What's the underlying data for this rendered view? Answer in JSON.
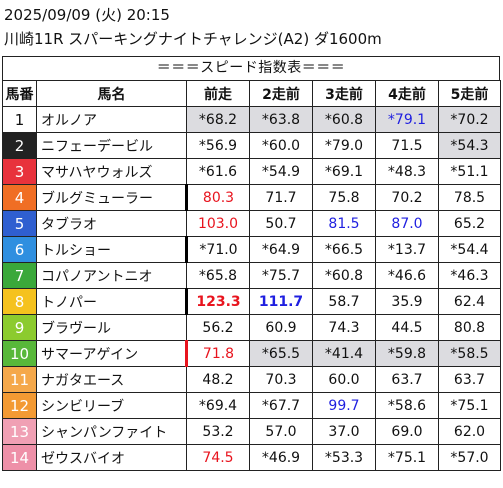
{
  "header": {
    "datetime": "2025/09/09 (火) 20:15",
    "race": "川崎11R スパーキングナイトチャレンジ(A2) ダ1600m"
  },
  "table": {
    "title": "＝＝＝スピード指数表＝＝＝",
    "columns": [
      "馬番",
      "馬名",
      "前走",
      "2走前",
      "3走前",
      "4走前",
      "5走前"
    ],
    "colors": {
      "shade": "#dcdce0",
      "red": "#e8141e",
      "blue": "#1f1fe0"
    },
    "rows": [
      {
        "no": "1",
        "bg": "#ffffff",
        "fg": "#111111",
        "name": "オルノア",
        "vals": [
          {
            "t": "*68.2",
            "shade": true
          },
          {
            "t": "*63.8",
            "shade": true
          },
          {
            "t": "*60.8",
            "shade": true
          },
          {
            "t": "*79.1",
            "shade": true,
            "color": "blue"
          },
          {
            "t": "*70.2",
            "shade": true
          }
        ]
      },
      {
        "no": "2",
        "bg": "#222222",
        "fg": "#ffffff",
        "name": "ニフェーデービル",
        "vals": [
          {
            "t": "*56.9"
          },
          {
            "t": "*60.0"
          },
          {
            "t": "*79.0"
          },
          {
            "t": "71.5"
          },
          {
            "t": "*54.3",
            "shade": true
          }
        ]
      },
      {
        "no": "3",
        "bg": "#e8323c",
        "fg": "#ffffff",
        "name": "マサハヤウォルズ",
        "vals": [
          {
            "t": "*61.6"
          },
          {
            "t": "*54.9"
          },
          {
            "t": "*69.1"
          },
          {
            "t": "*48.3"
          },
          {
            "t": "*51.1"
          }
        ]
      },
      {
        "no": "4",
        "bg": "#f06e24",
        "fg": "#ffffff",
        "name": "ブルグミューラー",
        "vals": [
          {
            "t": "80.3",
            "color": "red",
            "bar": "black"
          },
          {
            "t": "71.7"
          },
          {
            "t": "75.8"
          },
          {
            "t": "70.2"
          },
          {
            "t": "78.5"
          }
        ]
      },
      {
        "no": "5",
        "bg": "#2f5fd0",
        "fg": "#ffffff",
        "name": "タブラオ",
        "vals": [
          {
            "t": "103.0",
            "color": "red"
          },
          {
            "t": "50.7"
          },
          {
            "t": "81.5",
            "color": "blue"
          },
          {
            "t": "87.0",
            "color": "blue"
          },
          {
            "t": "65.2"
          }
        ]
      },
      {
        "no": "6",
        "bg": "#2f8fe0",
        "fg": "#ffffff",
        "name": "トルショー",
        "vals": [
          {
            "t": "*71.0",
            "bar": "black"
          },
          {
            "t": "*64.9"
          },
          {
            "t": "*66.5"
          },
          {
            "t": "*13.7"
          },
          {
            "t": "*54.4"
          }
        ]
      },
      {
        "no": "7",
        "bg": "#3aa83a",
        "fg": "#ffffff",
        "name": "コパノアントニオ",
        "vals": [
          {
            "t": "*65.8"
          },
          {
            "t": "*75.7"
          },
          {
            "t": "*60.8"
          },
          {
            "t": "*46.6"
          },
          {
            "t": "*46.3"
          }
        ]
      },
      {
        "no": "8",
        "bg": "#f5c21e",
        "fg": "#ffffff",
        "name": "トノパー",
        "vals": [
          {
            "t": "123.3",
            "color": "red",
            "bold": true,
            "bar": "black"
          },
          {
            "t": "111.7",
            "color": "blue",
            "bold": true
          },
          {
            "t": "58.7"
          },
          {
            "t": "35.9"
          },
          {
            "t": "62.4"
          }
        ]
      },
      {
        "no": "9",
        "bg": "#8ccb2e",
        "fg": "#ffffff",
        "name": "ブラヴール",
        "vals": [
          {
            "t": "56.2"
          },
          {
            "t": "60.9"
          },
          {
            "t": "74.3"
          },
          {
            "t": "44.5"
          },
          {
            "t": "80.8"
          }
        ]
      },
      {
        "no": "10",
        "bg": "#58b83a",
        "fg": "#ffffff",
        "name": "サマーアゲイン",
        "vals": [
          {
            "t": "71.8",
            "color": "red",
            "bar": "red"
          },
          {
            "t": "*65.5",
            "shade": true
          },
          {
            "t": "*41.4",
            "shade": true
          },
          {
            "t": "*59.8",
            "shade": true
          },
          {
            "t": "*58.5",
            "shade": true
          }
        ]
      },
      {
        "no": "11",
        "bg": "#f5a84a",
        "fg": "#ffffff",
        "name": "ナガタエース",
        "vals": [
          {
            "t": "48.2"
          },
          {
            "t": "70.3"
          },
          {
            "t": "60.0"
          },
          {
            "t": "63.7"
          },
          {
            "t": "63.7"
          }
        ]
      },
      {
        "no": "12",
        "bg": "#f39a33",
        "fg": "#ffffff",
        "name": "シンビリーブ",
        "vals": [
          {
            "t": "*69.4"
          },
          {
            "t": "*67.7"
          },
          {
            "t": "99.7",
            "color": "blue"
          },
          {
            "t": "*58.6"
          },
          {
            "t": "*75.1"
          }
        ]
      },
      {
        "no": "13",
        "bg": "#f0a0b4",
        "fg": "#ffffff",
        "name": "シャンパンファイト",
        "vals": [
          {
            "t": "53.2"
          },
          {
            "t": "57.0"
          },
          {
            "t": "37.0"
          },
          {
            "t": "69.0"
          },
          {
            "t": "62.0"
          }
        ]
      },
      {
        "no": "14",
        "bg": "#ee90a8",
        "fg": "#ffffff",
        "name": "ゼウスバイオ",
        "vals": [
          {
            "t": "74.5",
            "color": "red"
          },
          {
            "t": "*46.9"
          },
          {
            "t": "*53.3"
          },
          {
            "t": "*75.1"
          },
          {
            "t": "*57.0"
          }
        ]
      }
    ]
  }
}
